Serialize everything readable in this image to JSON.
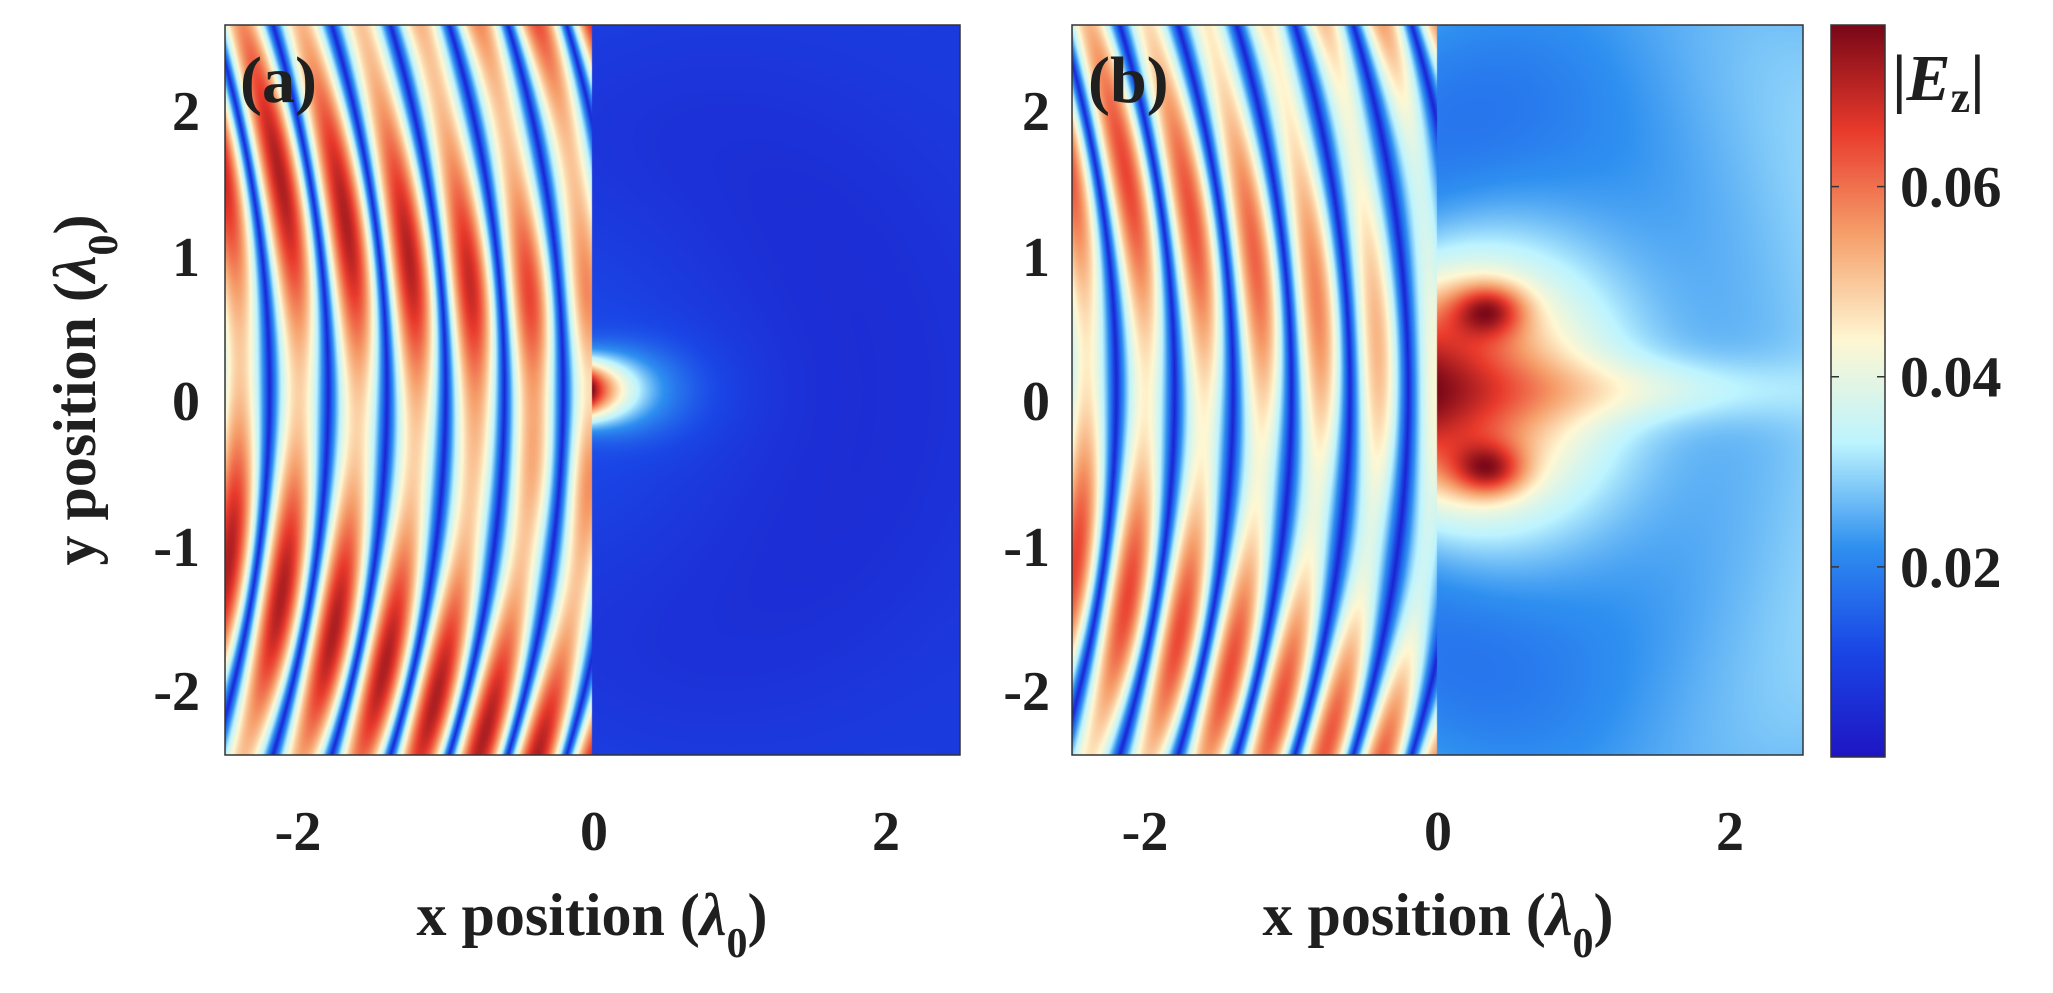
{
  "chart_data": [
    {
      "type": "heatmap",
      "panel_label": "(a)",
      "xlabel": "x position",
      "ylabel": "y position",
      "unit_symbol": "λ",
      "unit_subscript": "0",
      "xlim": [
        -2.5,
        2.5
      ],
      "ylim": [
        -2.5,
        2.5
      ],
      "xticks": [
        -2,
        0,
        2
      ],
      "xtick_labels": [
        "-2",
        "0",
        "2"
      ],
      "yticks": [
        2,
        1,
        0,
        -1,
        -2
      ],
      "ytick_labels": [
        "2",
        "1",
        "0",
        "-1",
        "-2"
      ],
      "field": {
        "description": "|Ez| field map: standing-wave fringes for x<0, weak field for x>0 with small spot near origin",
        "barrier_x": 0,
        "aperture_half_width": 0.25,
        "fringe_period": 0.4,
        "left_amplitude": 0.072,
        "right_amplitude": 0.012,
        "beam_peak": 0.065,
        "beam_extent": 0.3
      }
    },
    {
      "type": "heatmap",
      "panel_label": "(b)",
      "xlabel": "x position",
      "ylabel": "",
      "unit_symbol": "λ",
      "unit_subscript": "0",
      "xlim": [
        -2.5,
        2.5
      ],
      "ylim": [
        -2.5,
        2.5
      ],
      "xticks": [
        -2,
        0,
        2
      ],
      "xtick_labels": [
        "-2",
        "0",
        "2"
      ],
      "yticks": [
        2,
        1,
        0,
        -1,
        -2
      ],
      "ytick_labels": [
        "2",
        "1",
        "0",
        "-1",
        "-2"
      ],
      "field": {
        "description": "|Ez| field map: standing-wave fringes for x<0, broader aperture producing a beam along y=0 for x>0",
        "barrier_x": 0,
        "aperture_half_width": 1.0,
        "fringe_period": 0.4,
        "left_amplitude": 0.066,
        "right_amplitude": 0.03,
        "beam_peak": 0.045,
        "beam_extent": 2.5
      }
    }
  ],
  "colorbar": {
    "label": "|E",
    "label_italic": "E",
    "label_subscript": "z",
    "min": 0,
    "max": 0.077,
    "ticks": [
      0.02,
      0.04,
      0.06
    ],
    "tick_labels": [
      "0.02",
      "0.04",
      "0.06"
    ],
    "colormap": "jet-like",
    "colors": [
      "#1f16c4",
      "#1a46e6",
      "#2f90f0",
      "#bdf4ff",
      "#fff7d2",
      "#f6a06c",
      "#e93a2c",
      "#7a0818"
    ]
  }
}
